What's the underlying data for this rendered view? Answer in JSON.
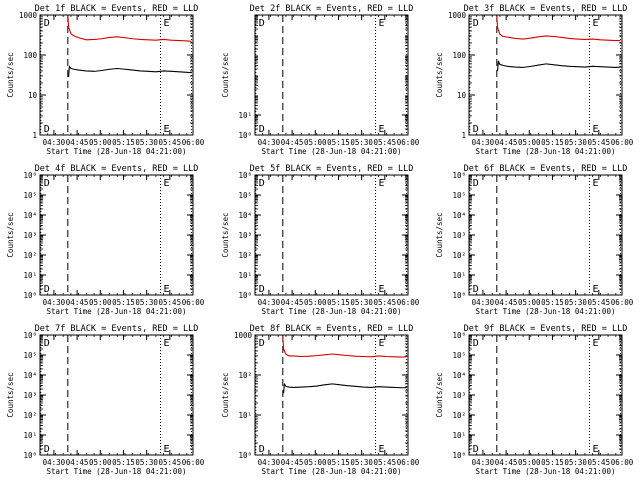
{
  "figure": {
    "x_label": "Start Time (28-Jun-18 04:21:00)",
    "x_ticks": [
      "04:30",
      "04:45",
      "05:00",
      "05:15",
      "05:30",
      "05:45",
      "06:00"
    ],
    "y_label": "Counts/sec"
  },
  "chart_data": [
    {
      "type": "line",
      "panel": 1,
      "title": "Det 1f BLACK = Events, RED = LLD",
      "x_unit": "minutes after 04:21:00",
      "xlim": [
        0,
        99
      ],
      "y_scale": "log",
      "ylim": [
        1,
        1000
      ],
      "y_ticks": [
        {
          "v": 1,
          "label": "1"
        },
        {
          "v": 10,
          "label": "10"
        },
        {
          "v": 100,
          "label": "100"
        },
        {
          "v": 1000,
          "label": "1000"
        }
      ],
      "markers": [
        {
          "x": 0.5,
          "style": "dotted",
          "label": "D"
        },
        {
          "x": 18,
          "style": "dashed",
          "label": ""
        },
        {
          "x": 78,
          "style": "dotted",
          "label": "E"
        },
        {
          "x": 98,
          "style": "dotted",
          "label": ""
        }
      ],
      "series": [
        {
          "color": "#d40000",
          "x": [
            18,
            18.5,
            20,
            22,
            25,
            30,
            35,
            40,
            45,
            50,
            55,
            60,
            65,
            70,
            75,
            80,
            85,
            90,
            95,
            98
          ],
          "y": [
            980,
            500,
            340,
            300,
            270,
            240,
            245,
            255,
            275,
            285,
            270,
            255,
            245,
            240,
            235,
            245,
            235,
            230,
            225,
            220
          ]
        },
        {
          "color": "#000000",
          "x": [
            18.5,
            19,
            20,
            22,
            25,
            30,
            35,
            40,
            45,
            50,
            55,
            60,
            65,
            70,
            75,
            80,
            85,
            90,
            95,
            98
          ],
          "y": [
            28,
            52,
            46,
            44,
            42,
            40,
            39,
            41,
            44,
            46,
            44,
            42,
            40,
            39,
            38,
            40,
            39,
            38,
            37,
            36
          ]
        }
      ]
    },
    {
      "type": "line",
      "panel": 2,
      "title": "Det 2f BLACK = Events, RED = LLD",
      "x_unit": "minutes after 04:21:00",
      "xlim": [
        0,
        99
      ],
      "y_scale": "log",
      "ylim": [
        1,
        1000000
      ],
      "y_ticks": [
        {
          "v": 1,
          "label": "10⁰"
        },
        {
          "v": 10,
          "label": "10¹"
        }
      ],
      "markers": [
        {
          "x": 0.5,
          "style": "dotted",
          "label": "D"
        },
        {
          "x": 18,
          "style": "dashed",
          "label": ""
        },
        {
          "x": 78,
          "style": "dotted",
          "label": "E"
        },
        {
          "x": 98,
          "style": "dotted",
          "label": ""
        }
      ],
      "series": []
    },
    {
      "type": "line",
      "panel": 3,
      "title": "Det 3f BLACK = Events, RED = LLD",
      "x_unit": "minutes after 04:21:00",
      "xlim": [
        0,
        99
      ],
      "y_scale": "log",
      "ylim": [
        1,
        1000
      ],
      "y_ticks": [
        {
          "v": 1,
          "label": "1"
        },
        {
          "v": 10,
          "label": "10"
        },
        {
          "v": 100,
          "label": "100"
        },
        {
          "v": 1000,
          "label": "1000"
        }
      ],
      "markers": [
        {
          "x": 0.5,
          "style": "dotted",
          "label": "D"
        },
        {
          "x": 18,
          "style": "dashed",
          "label": ""
        },
        {
          "x": 78,
          "style": "dotted",
          "label": "E"
        },
        {
          "x": 98,
          "style": "dotted",
          "label": ""
        }
      ],
      "series": [
        {
          "color": "#d40000",
          "x": [
            18,
            18.5,
            20,
            22,
            25,
            30,
            35,
            40,
            45,
            50,
            55,
            60,
            65,
            70,
            75,
            80,
            85,
            90,
            95,
            98
          ],
          "y": [
            950,
            480,
            330,
            290,
            280,
            260,
            250,
            265,
            285,
            300,
            290,
            275,
            260,
            250,
            245,
            250,
            240,
            235,
            230,
            230
          ]
        },
        {
          "color": "#000000",
          "x": [
            18.5,
            19,
            20,
            22,
            25,
            30,
            35,
            40,
            45,
            50,
            55,
            60,
            65,
            70,
            75,
            80,
            85,
            90,
            95,
            98
          ],
          "y": [
            40,
            70,
            58,
            55,
            52,
            50,
            49,
            52,
            56,
            60,
            57,
            54,
            52,
            51,
            50,
            52,
            51,
            50,
            49,
            50
          ]
        }
      ]
    },
    {
      "type": "line",
      "panel": 4,
      "title": "Det 4f BLACK = Events, RED = LLD",
      "x_unit": "minutes after 04:21:00",
      "xlim": [
        0,
        99
      ],
      "y_scale": "log",
      "ylim": [
        1,
        1000000
      ],
      "y_ticks": [
        {
          "v": 1,
          "label": "10⁰"
        },
        {
          "v": 10,
          "label": "10¹"
        },
        {
          "v": 100,
          "label": "10²"
        },
        {
          "v": 1000,
          "label": "10³"
        },
        {
          "v": 10000,
          "label": "10⁴"
        },
        {
          "v": 100000,
          "label": "10⁵"
        },
        {
          "v": 1000000,
          "label": "10⁶"
        }
      ],
      "markers": [
        {
          "x": 0.5,
          "style": "dotted",
          "label": "D"
        },
        {
          "x": 18,
          "style": "dashed",
          "label": ""
        },
        {
          "x": 78,
          "style": "dotted",
          "label": "E"
        },
        {
          "x": 98,
          "style": "dotted",
          "label": ""
        }
      ],
      "series": []
    },
    {
      "type": "line",
      "panel": 5,
      "title": "Det 5f BLACK = Events, RED = LLD",
      "x_unit": "minutes after 04:21:00",
      "xlim": [
        0,
        99
      ],
      "y_scale": "log",
      "ylim": [
        1,
        1000000
      ],
      "y_ticks": [
        {
          "v": 1,
          "label": "10⁰"
        },
        {
          "v": 10,
          "label": "10¹"
        },
        {
          "v": 100,
          "label": "10²"
        },
        {
          "v": 1000,
          "label": "10³"
        },
        {
          "v": 10000,
          "label": "10⁴"
        },
        {
          "v": 100000,
          "label": "10⁵"
        },
        {
          "v": 1000000,
          "label": "10⁶"
        }
      ],
      "markers": [
        {
          "x": 0.5,
          "style": "dotted",
          "label": "D"
        },
        {
          "x": 18,
          "style": "dashed",
          "label": ""
        },
        {
          "x": 78,
          "style": "dotted",
          "label": "E"
        },
        {
          "x": 98,
          "style": "dotted",
          "label": ""
        }
      ],
      "series": []
    },
    {
      "type": "line",
      "panel": 6,
      "title": "Det 6f BLACK = Events, RED = LLD",
      "x_unit": "minutes after 04:21:00",
      "xlim": [
        0,
        99
      ],
      "y_scale": "log",
      "ylim": [
        1,
        1000000
      ],
      "y_ticks": [
        {
          "v": 1,
          "label": "10⁰"
        },
        {
          "v": 10,
          "label": "10¹"
        },
        {
          "v": 100,
          "label": "10²"
        },
        {
          "v": 1000,
          "label": "10³"
        },
        {
          "v": 10000,
          "label": "10⁴"
        },
        {
          "v": 100000,
          "label": "10⁵"
        },
        {
          "v": 1000000,
          "label": "10⁶"
        }
      ],
      "markers": [
        {
          "x": 0.5,
          "style": "dotted",
          "label": "D"
        },
        {
          "x": 18,
          "style": "dashed",
          "label": ""
        },
        {
          "x": 78,
          "style": "dotted",
          "label": "E"
        },
        {
          "x": 98,
          "style": "dotted",
          "label": ""
        }
      ],
      "series": []
    },
    {
      "type": "line",
      "panel": 7,
      "title": "Det 7f BLACK = Events, RED = LLD",
      "x_unit": "minutes after 04:21:00",
      "xlim": [
        0,
        99
      ],
      "y_scale": "log",
      "ylim": [
        1,
        1000000
      ],
      "y_ticks": [
        {
          "v": 1,
          "label": "10⁰"
        },
        {
          "v": 10,
          "label": "10¹"
        },
        {
          "v": 100,
          "label": "10²"
        },
        {
          "v": 1000,
          "label": "10³"
        },
        {
          "v": 10000,
          "label": "10⁴"
        },
        {
          "v": 100000,
          "label": "10⁵"
        },
        {
          "v": 1000000,
          "label": "10⁶"
        }
      ],
      "markers": [
        {
          "x": 0.5,
          "style": "dotted",
          "label": "D"
        },
        {
          "x": 18,
          "style": "dashed",
          "label": ""
        },
        {
          "x": 78,
          "style": "dotted",
          "label": "E"
        },
        {
          "x": 98,
          "style": "dotted",
          "label": ""
        }
      ],
      "series": []
    },
    {
      "type": "line",
      "panel": 8,
      "title": "Det 8f BLACK = Events, RED = LLD",
      "x_unit": "minutes after 04:21:00",
      "xlim": [
        0,
        99
      ],
      "y_scale": "log",
      "ylim": [
        1,
        1000
      ],
      "y_ticks": [
        {
          "v": 1,
          "label": "10⁰"
        },
        {
          "v": 10,
          "label": "10¹"
        },
        {
          "v": 100,
          "label": "10²"
        },
        {
          "v": 1000,
          "label": "1000"
        }
      ],
      "markers": [
        {
          "x": 0.5,
          "style": "dotted",
          "label": "D"
        },
        {
          "x": 18,
          "style": "dashed",
          "label": ""
        },
        {
          "x": 78,
          "style": "dotted",
          "label": "E"
        },
        {
          "x": 98,
          "style": "dotted",
          "label": ""
        }
      ],
      "series": [
        {
          "color": "#d40000",
          "x": [
            18,
            18.5,
            20,
            22,
            25,
            30,
            35,
            40,
            45,
            50,
            55,
            60,
            65,
            70,
            75,
            80,
            85,
            90,
            95,
            98
          ],
          "y": [
            900,
            450,
            330,
            300,
            300,
            290,
            295,
            305,
            320,
            335,
            320,
            305,
            295,
            290,
            285,
            300,
            290,
            285,
            280,
            285
          ]
        },
        {
          "color": "#000000",
          "x": [
            18.5,
            19,
            20,
            22,
            25,
            30,
            35,
            40,
            45,
            50,
            55,
            60,
            65,
            70,
            75,
            80,
            85,
            90,
            95,
            98
          ],
          "y": [
            35,
            60,
            52,
            50,
            49,
            50,
            51,
            53,
            57,
            60,
            57,
            54,
            52,
            50,
            49,
            51,
            50,
            49,
            48,
            48
          ]
        }
      ]
    },
    {
      "type": "line",
      "panel": 9,
      "title": "Det 9f BLACK = Events, RED = LLD",
      "x_unit": "minutes after 04:21:00",
      "xlim": [
        0,
        99
      ],
      "y_scale": "log",
      "ylim": [
        1,
        1000000
      ],
      "y_ticks": [
        {
          "v": 1,
          "label": "10⁰"
        },
        {
          "v": 10,
          "label": "10¹"
        },
        {
          "v": 100,
          "label": "10²"
        },
        {
          "v": 1000,
          "label": "10³"
        },
        {
          "v": 10000,
          "label": "10⁴"
        },
        {
          "v": 100000,
          "label": "10⁵"
        },
        {
          "v": 1000000,
          "label": "10⁶"
        }
      ],
      "markers": [
        {
          "x": 0.5,
          "style": "dotted",
          "label": "D"
        },
        {
          "x": 18,
          "style": "dashed",
          "label": ""
        },
        {
          "x": 78,
          "style": "dotted",
          "label": "E"
        },
        {
          "x": 98,
          "style": "dotted",
          "label": ""
        }
      ],
      "series": []
    }
  ]
}
